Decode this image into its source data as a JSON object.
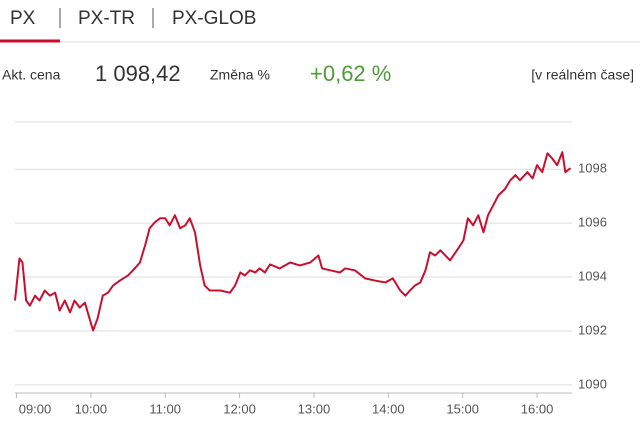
{
  "tabs": [
    "PX",
    "PX-TR",
    "PX-GLOB"
  ],
  "quote": {
    "price_label": "Akt. cena",
    "price": "1 098,42",
    "change_label": "Změna %",
    "change": "+0,62 %",
    "realtime": "[v reálném čase]"
  },
  "chart_data": {
    "type": "line",
    "color": "#c8102e",
    "grid": true,
    "x": [
      8.98,
      9.04,
      9.08,
      9.13,
      9.18,
      9.25,
      9.31,
      9.38,
      9.45,
      9.52,
      9.58,
      9.65,
      9.72,
      9.78,
      9.85,
      9.92,
      9.99,
      10.03,
      10.09,
      10.16,
      10.23,
      10.3,
      10.39,
      10.5,
      10.59,
      10.66,
      10.73,
      10.79,
      10.86,
      10.93,
      11.0,
      11.06,
      11.13,
      11.2,
      11.27,
      11.33,
      11.4,
      11.47,
      11.53,
      11.6,
      11.74,
      11.87,
      11.94,
      12.01,
      12.07,
      12.14,
      12.21,
      12.27,
      12.34,
      12.41,
      12.54,
      12.68,
      12.81,
      12.95,
      13.06,
      13.11,
      13.22,
      13.35,
      13.42,
      13.55,
      13.69,
      13.82,
      13.96,
      14.06,
      14.16,
      14.23,
      14.29,
      14.36,
      14.43,
      14.5,
      14.56,
      14.63,
      14.7,
      14.83,
      14.94,
      15.01,
      15.07,
      15.14,
      15.21,
      15.28,
      15.34,
      15.41,
      15.48,
      15.57,
      15.64,
      15.71,
      15.77,
      15.87,
      15.94,
      16.0,
      16.07,
      16.14,
      16.2,
      16.27,
      16.34,
      16.38,
      16.45
    ],
    "values": [
      1093.13,
      1094.69,
      1094.54,
      1093.13,
      1092.94,
      1093.31,
      1093.13,
      1093.5,
      1093.31,
      1093.42,
      1092.76,
      1093.13,
      1092.69,
      1093.13,
      1092.87,
      1093.05,
      1092.39,
      1092.02,
      1092.46,
      1093.31,
      1093.42,
      1093.69,
      1093.87,
      1094.06,
      1094.32,
      1094.54,
      1095.18,
      1095.81,
      1096.03,
      1096.18,
      1096.18,
      1095.92,
      1096.29,
      1095.81,
      1095.92,
      1096.18,
      1095.66,
      1094.43,
      1093.69,
      1093.5,
      1093.5,
      1093.42,
      1093.69,
      1094.17,
      1094.06,
      1094.25,
      1094.17,
      1094.32,
      1094.17,
      1094.47,
      1094.32,
      1094.54,
      1094.43,
      1094.54,
      1094.8,
      1094.32,
      1094.25,
      1094.17,
      1094.32,
      1094.25,
      1093.95,
      1093.87,
      1093.8,
      1093.95,
      1093.5,
      1093.31,
      1093.5,
      1093.69,
      1093.8,
      1094.25,
      1094.92,
      1094.8,
      1094.99,
      1094.62,
      1095.06,
      1095.36,
      1096.18,
      1095.92,
      1096.29,
      1095.66,
      1096.29,
      1096.66,
      1097.03,
      1097.27,
      1097.59,
      1097.78,
      1097.59,
      1097.89,
      1097.66,
      1098.15,
      1097.89,
      1098.59,
      1098.41,
      1098.15,
      1098.63,
      1097.89,
      1098.04
    ],
    "xlim": [
      8.98,
      16.47
    ],
    "xticks": [
      {
        "value": 9,
        "label": "09:00"
      },
      {
        "value": 10,
        "label": "10:00"
      },
      {
        "value": 11,
        "label": "11:00"
      },
      {
        "value": 12,
        "label": "12:00"
      },
      {
        "value": 13,
        "label": "13:00"
      },
      {
        "value": 14,
        "label": "14:00"
      },
      {
        "value": 15,
        "label": "15:00"
      },
      {
        "value": 16,
        "label": "16:00"
      }
    ],
    "ylim": [
      1089.7,
      1099.75
    ],
    "yticks": [
      1090,
      1092,
      1094,
      1096,
      1098
    ]
  }
}
